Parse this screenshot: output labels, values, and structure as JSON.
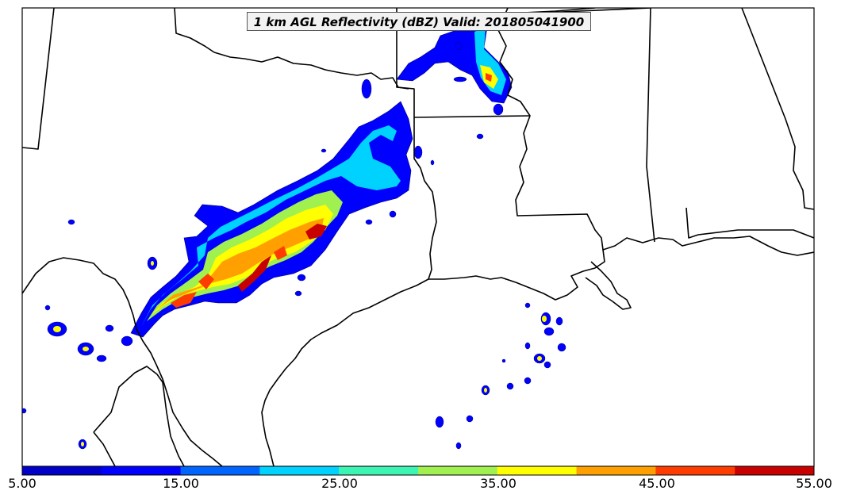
{
  "title": "1 km AGL Reflectivity (dBZ) Valid: 201805041900",
  "colorbar": {
    "colors": [
      "#0000c8",
      "#0000ff",
      "#0064ff",
      "#00d2ff",
      "#3cf5b4",
      "#a0f050",
      "#ffff00",
      "#ffa000",
      "#ff3c00",
      "#c80000"
    ],
    "ticks": [
      "5.00",
      "15.00",
      "25.00",
      "35.00",
      "45.00",
      "55.00"
    ]
  },
  "map_colors": {
    "land": "#ffffff",
    "boundary": "#000000",
    "frame": "#000000"
  }
}
